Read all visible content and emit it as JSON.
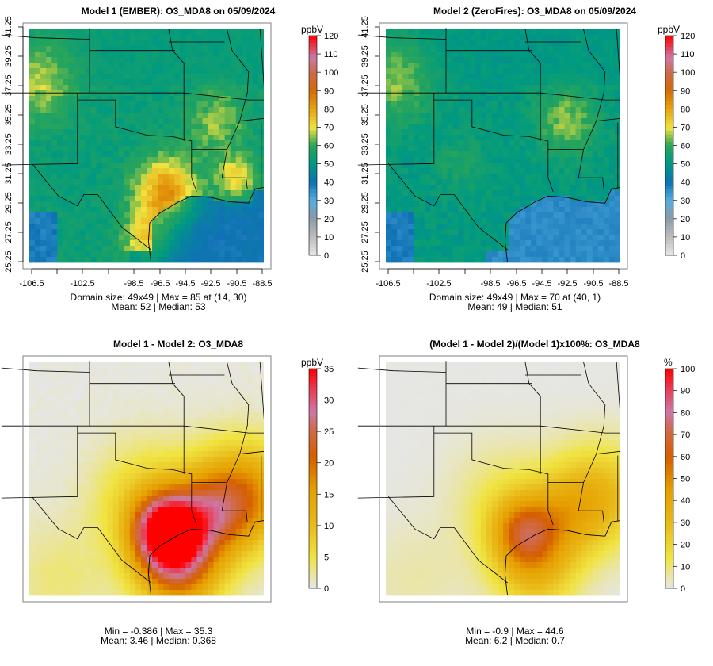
{
  "chart_data": [
    {
      "type": "heatmap",
      "title": "Model 1 (EMBER): O3_MDA8 on 05/09/2024",
      "unit": "ppbV",
      "colorbar_ticks": [
        "0",
        "10",
        "20",
        "30",
        "40",
        "50",
        "60",
        "70",
        "80",
        "90",
        "100",
        "110",
        "120"
      ],
      "colorbar_range": [
        0,
        120
      ],
      "palette": "viridis-like",
      "x_ticks": [
        "-106.5",
        "-102.5",
        "-98.5",
        "-96.5",
        "-94.5",
        "-92.5",
        "-90.5",
        "-88.5"
      ],
      "y_ticks": [
        "25.25",
        "27.25",
        "29.25",
        "31.25",
        "33.25",
        "35.25",
        "37.25",
        "39.25",
        "41.25"
      ],
      "stats": [
        "Domain size: 49x49 | Max = 85 at (14, 30)",
        "Mean: 52 |  Median: 53"
      ],
      "field": {
        "base": 53,
        "hotspots": [
          {
            "lon": -96.0,
            "lat": 30.0,
            "amp": 30,
            "r": 1.2
          },
          {
            "lon": -90.5,
            "lat": 31.0,
            "amp": 18,
            "r": 0.8
          },
          {
            "lon": -92.0,
            "lat": 35.0,
            "amp": 12,
            "r": 1.2
          },
          {
            "lon": -106.0,
            "lat": 38.0,
            "amp": 14,
            "r": 1.5
          },
          {
            "lon": -97.5,
            "lat": 26.5,
            "amp": 18,
            "r": 1.0
          }
        ],
        "ocean_low": 38,
        "north_low": 50
      }
    },
    {
      "type": "heatmap",
      "title": "Model 2 (ZeroFires): O3_MDA8 on 05/09/2024",
      "unit": "ppbV",
      "colorbar_ticks": [
        "0",
        "10",
        "20",
        "30",
        "40",
        "50",
        "60",
        "70",
        "80",
        "90",
        "100",
        "110",
        "120"
      ],
      "colorbar_range": [
        0,
        120
      ],
      "palette": "viridis-like",
      "x_ticks": [
        "-106.5",
        "-102.5",
        "-98.5",
        "-96.5",
        "-94.5",
        "-92.5",
        "-90.5",
        "-88.5"
      ],
      "y_ticks": [
        "25.25",
        "27.25",
        "29.25",
        "31.25",
        "33.25",
        "35.25",
        "37.25",
        "39.25",
        "41.25"
      ],
      "stats": [
        "Domain size: 49x49 | Max = 70 at (40, 1)",
        "Mean: 49 |  Median: 51"
      ],
      "field": {
        "base": 51,
        "hotspots": [
          {
            "lon": -92.5,
            "lat": 35.0,
            "amp": 14,
            "r": 1.2
          },
          {
            "lon": -106.0,
            "lat": 38.0,
            "amp": 14,
            "r": 1.5
          },
          {
            "lon": -101.0,
            "lat": 32.0,
            "amp": 6,
            "r": 1.0
          }
        ],
        "ocean_low": 34,
        "north_low": 48
      }
    },
    {
      "type": "heatmap",
      "title": "Model 1 - Model 2: O3_MDA8",
      "unit": "ppbV",
      "colorbar_ticks": [
        "0",
        "5",
        "10",
        "15",
        "20",
        "25",
        "30",
        "35"
      ],
      "colorbar_range": [
        0,
        35
      ],
      "palette": "yellow-orange-red",
      "stats": [
        "Min = -0.386 | Max = 35.3",
        "Mean: 3.46 |  Median: 0.368"
      ],
      "field": {
        "base": 0,
        "hotspots": [
          {
            "lon": -96.0,
            "lat": 29.5,
            "amp": 32,
            "r": 1.2
          },
          {
            "lon": -95.0,
            "lat": 27.0,
            "amp": 20,
            "r": 1.6
          },
          {
            "lon": -90.0,
            "lat": 32.0,
            "amp": 18,
            "r": 1.8
          },
          {
            "lon": -93.0,
            "lat": 30.5,
            "amp": 14,
            "r": 1.5
          },
          {
            "lon": -97.5,
            "lat": 31.5,
            "amp": 8,
            "r": 2.0
          },
          {
            "lon": -104.5,
            "lat": 26.0,
            "amp": 3,
            "r": 2.0
          }
        ]
      }
    },
    {
      "type": "heatmap",
      "title": "(Model 1 - Model 2)/(Model 1)x100%: O3_MDA8",
      "unit": "%",
      "colorbar_ticks": [
        "0",
        "10",
        "20",
        "30",
        "40",
        "50",
        "60",
        "70",
        "80",
        "90",
        "100"
      ],
      "colorbar_range": [
        0,
        100
      ],
      "palette": "yellow-orange-red",
      "stats": [
        "Min = -0.9 | Max = 44.6",
        "Mean: 6.2 |  Median: 0.7"
      ],
      "field": {
        "base": 0,
        "hotspots": [
          {
            "lon": -96.0,
            "lat": 29.5,
            "amp": 40,
            "r": 1.2
          },
          {
            "lon": -95.0,
            "lat": 27.0,
            "amp": 30,
            "r": 1.6
          },
          {
            "lon": -90.0,
            "lat": 32.0,
            "amp": 30,
            "r": 1.8
          },
          {
            "lon": -93.0,
            "lat": 30.5,
            "amp": 22,
            "r": 1.5
          },
          {
            "lon": -97.5,
            "lat": 31.5,
            "amp": 12,
            "r": 2.0
          },
          {
            "lon": -104.5,
            "lat": 26.0,
            "amp": 5,
            "r": 2.0
          }
        ]
      }
    }
  ]
}
